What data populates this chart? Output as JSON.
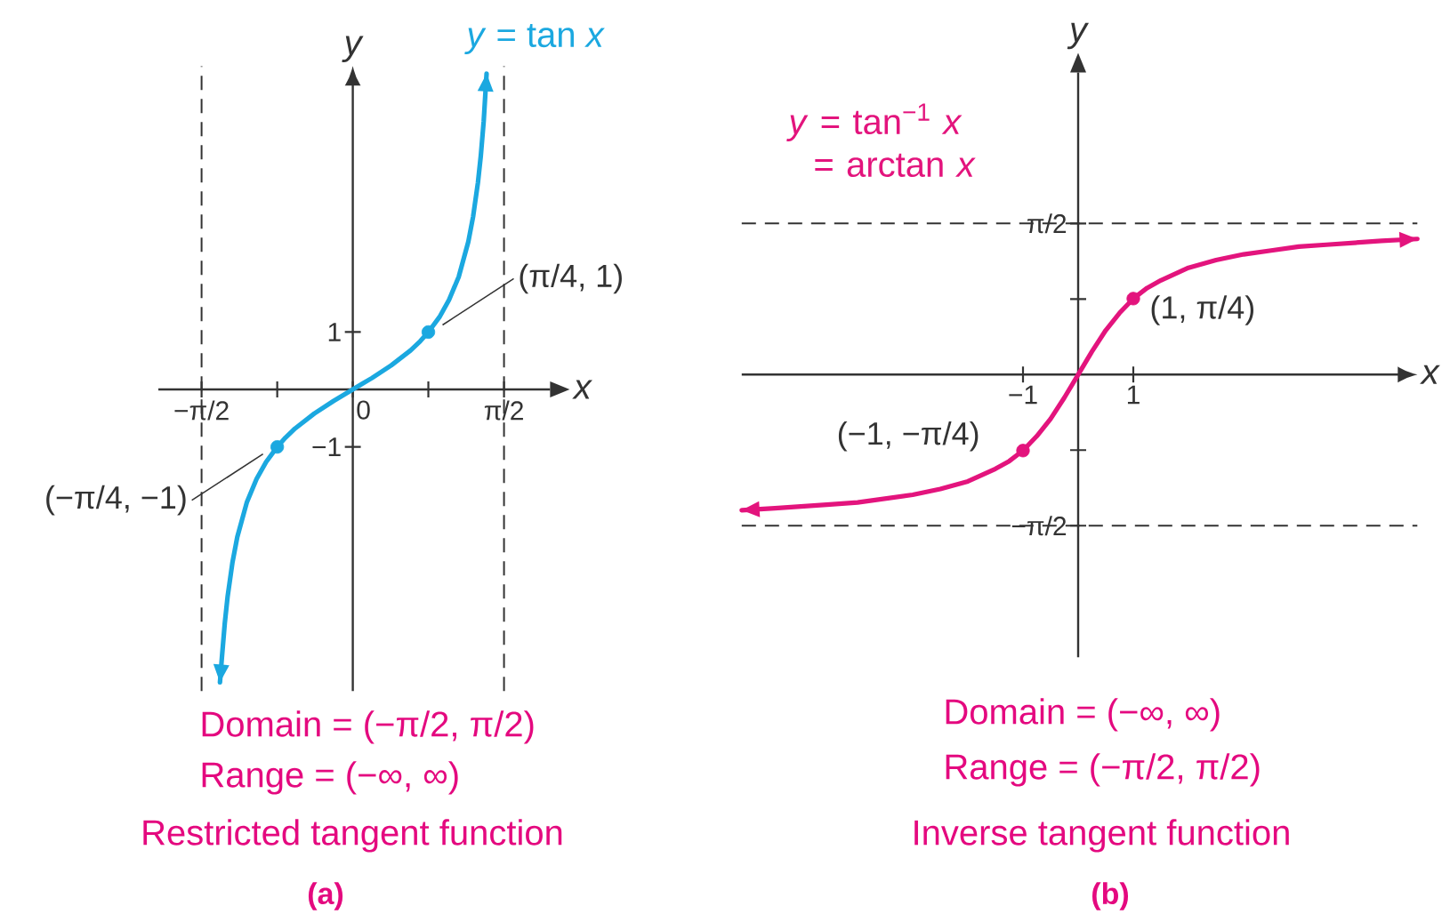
{
  "chart_data": [
    {
      "type": "line",
      "title": "Restricted tangent function",
      "subtitle": "(a)",
      "xlabel": "x",
      "ylabel": "y",
      "xlim": [
        -2.02,
        2.05
      ],
      "ylim": [
        -5.25,
        5.63
      ],
      "xticks": [
        {
          "value": -1.571,
          "label": "−π/2"
        },
        {
          "value": -0.785,
          "label": null
        },
        0,
        {
          "value": 0.785,
          "label": null
        },
        {
          "value": 1.571,
          "label": "π/2"
        }
      ],
      "yticks": [
        {
          "value": -1,
          "label": "−1"
        },
        1
      ],
      "series": [
        {
          "name": "*y* = tan *x*",
          "color": "#1ba8e0",
          "x": [
            -1.38,
            -1.36,
            -1.33,
            -1.3,
            -1.25,
            -1.2,
            -1.1,
            -1.0,
            -0.9,
            -0.785,
            -0.7,
            -0.6,
            -0.5,
            -0.4,
            -0.3,
            -0.2,
            -0.1,
            0,
            0.1,
            0.2,
            0.3,
            0.4,
            0.5,
            0.6,
            0.7,
            0.785,
            0.9,
            1.0,
            1.1,
            1.2,
            1.25,
            1.3,
            1.33,
            1.36,
            1.39
          ],
          "values": [
            -5.1,
            -4.67,
            -4.07,
            -3.6,
            -3.01,
            -2.57,
            -1.96,
            -1.56,
            -1.26,
            -1,
            -0.84,
            -0.68,
            -0.55,
            -0.42,
            -0.31,
            -0.2,
            -0.1,
            0,
            0.1,
            0.2,
            0.31,
            0.42,
            0.55,
            0.68,
            0.84,
            1,
            1.26,
            1.56,
            1.96,
            2.57,
            3.01,
            3.6,
            4.07,
            4.67,
            5.5
          ]
        },
        {
          "type": "scatter",
          "marker": "circle",
          "color": "#1ba8e0",
          "x": [
            -0.785,
            0.785
          ],
          "values": [
            -1,
            1
          ]
        }
      ],
      "ref_lines": [
        {
          "axis": "x",
          "value": -1.571,
          "color": "#333333",
          "line_style": "dashed"
        },
        {
          "axis": "x",
          "value": 1.571,
          "color": "#333333",
          "line_style": "dashed"
        }
      ],
      "annotations": [
        {
          "text": "(π/4, 1)",
          "x": 0.785,
          "y": 1
        },
        {
          "text": "(−π/4, −1)",
          "x": -0.785,
          "y": -1
        },
        "Domain = (−π/2, π/2)",
        "Range = (−∞, ∞)"
      ]
    },
    {
      "type": "line",
      "title": "Inverse tangent function",
      "subtitle": "(b)",
      "xlabel": "x",
      "ylabel": "y",
      "xlim": [
        -6.1,
        6.15
      ],
      "ylim": [
        -2.94,
        3.14
      ],
      "xticks": [
        {
          "value": -1,
          "label": "−1"
        },
        1
      ],
      "yticks": [
        {
          "value": -1.571,
          "label": "−π/2"
        },
        {
          "value": -0.785,
          "label": null
        },
        {
          "value": 0.785,
          "label": null
        },
        {
          "value": 1.571,
          "label": "π/2"
        }
      ],
      "series": [
        {
          "name": "*y* = tan$^{−1}$ *x* = arctan *x*",
          "color": "#e3147d",
          "x": [
            -6.1,
            -5.5,
            -5,
            -4.5,
            -4,
            -3.5,
            -3,
            -2.5,
            -2,
            -1.5,
            -1.25,
            -1,
            -0.75,
            -0.5,
            -0.25,
            0,
            0.25,
            0.5,
            0.75,
            1,
            1.25,
            1.5,
            2,
            2.5,
            3,
            3.5,
            4,
            4.5,
            5,
            5.5,
            6.15
          ],
          "values": [
            -1.41,
            -1.39,
            -1.37,
            -1.35,
            -1.33,
            -1.29,
            -1.25,
            -1.19,
            -1.11,
            -0.98,
            -0.9,
            -0.79,
            -0.64,
            -0.46,
            -0.24,
            0,
            0.24,
            0.46,
            0.64,
            0.79,
            0.9,
            0.98,
            1.11,
            1.19,
            1.25,
            1.29,
            1.33,
            1.35,
            1.37,
            1.39,
            1.41
          ]
        },
        {
          "type": "scatter",
          "marker": "circle",
          "color": "#e3147d",
          "x": [
            -1,
            1
          ],
          "values": [
            -0.79,
            0.79
          ]
        }
      ],
      "ref_lines": [
        {
          "axis": "y",
          "value": -1.571,
          "color": "#333333",
          "line_style": "dashed"
        },
        {
          "axis": "y",
          "value": 1.571,
          "color": "#333333",
          "line_style": "dashed"
        }
      ],
      "annotations": [
        {
          "text": "(1, π/4)",
          "x": 1,
          "y": 0.79
        },
        {
          "text": "(−1, −π/4)",
          "x": -1,
          "y": -0.79
        },
        "Domain = (−∞, ∞)",
        "Range = (−π/2, π/2)"
      ]
    }
  ]
}
